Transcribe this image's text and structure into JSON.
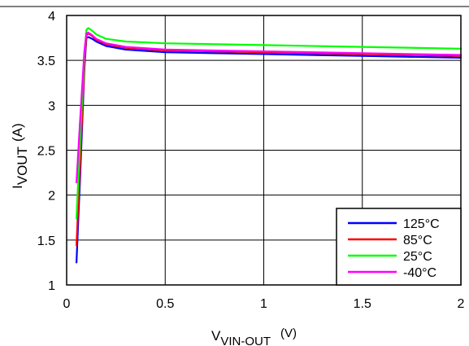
{
  "chart_data": {
    "type": "line",
    "title": "",
    "xlabel": {
      "main": "V",
      "sub": "VIN-OUT",
      "unit": "(V)"
    },
    "ylabel": {
      "main": "I",
      "sub": "VOUT",
      "unit": "(A)"
    },
    "xlim": [
      0,
      2
    ],
    "ylim": [
      1,
      4
    ],
    "grid": true,
    "legend_position": "bottom-right",
    "x_ticks": [
      {
        "value": 0,
        "label": "0"
      },
      {
        "value": 0.5,
        "label": "0.5"
      },
      {
        "value": 1,
        "label": "1"
      },
      {
        "value": 1.5,
        "label": "1.5"
      },
      {
        "value": 2,
        "label": "2"
      }
    ],
    "y_ticks": [
      {
        "value": 1,
        "label": "1"
      },
      {
        "value": 1.5,
        "label": "1.5"
      },
      {
        "value": 2,
        "label": "2"
      },
      {
        "value": 2.5,
        "label": "2.5"
      },
      {
        "value": 3,
        "label": "3"
      },
      {
        "value": 3.5,
        "label": "3.5"
      },
      {
        "value": 4,
        "label": "4"
      }
    ],
    "series": [
      {
        "name": "125°C",
        "color": "#0000ff",
        "x": [
          0.05,
          0.07,
          0.09,
          0.1,
          0.11,
          0.13,
          0.15,
          0.2,
          0.3,
          0.5,
          1.0,
          1.5,
          2.0
        ],
        "y": [
          1.25,
          2.3,
          3.4,
          3.75,
          3.76,
          3.74,
          3.71,
          3.66,
          3.62,
          3.59,
          3.57,
          3.55,
          3.53
        ]
      },
      {
        "name": "85°C",
        "color": "#ff0000",
        "x": [
          0.05,
          0.07,
          0.09,
          0.1,
          0.11,
          0.13,
          0.15,
          0.2,
          0.3,
          0.5,
          1.0,
          1.5,
          2.0
        ],
        "y": [
          1.44,
          2.45,
          3.45,
          3.78,
          3.8,
          3.77,
          3.73,
          3.68,
          3.64,
          3.61,
          3.59,
          3.57,
          3.55
        ]
      },
      {
        "name": "25°C",
        "color": "#00ff00",
        "x": [
          0.05,
          0.07,
          0.09,
          0.1,
          0.11,
          0.13,
          0.15,
          0.2,
          0.3,
          0.5,
          1.0,
          1.5,
          2.0
        ],
        "y": [
          1.74,
          2.7,
          3.55,
          3.84,
          3.86,
          3.83,
          3.79,
          3.74,
          3.71,
          3.69,
          3.67,
          3.65,
          3.63
        ]
      },
      {
        "name": "-40°C",
        "color": "#ff00ff",
        "x": [
          0.05,
          0.07,
          0.09,
          0.1,
          0.11,
          0.13,
          0.15,
          0.2,
          0.3,
          0.5,
          1.0,
          1.5,
          2.0
        ],
        "y": [
          2.14,
          2.9,
          3.6,
          3.8,
          3.81,
          3.78,
          3.74,
          3.69,
          3.65,
          3.62,
          3.6,
          3.58,
          3.56
        ]
      }
    ]
  }
}
